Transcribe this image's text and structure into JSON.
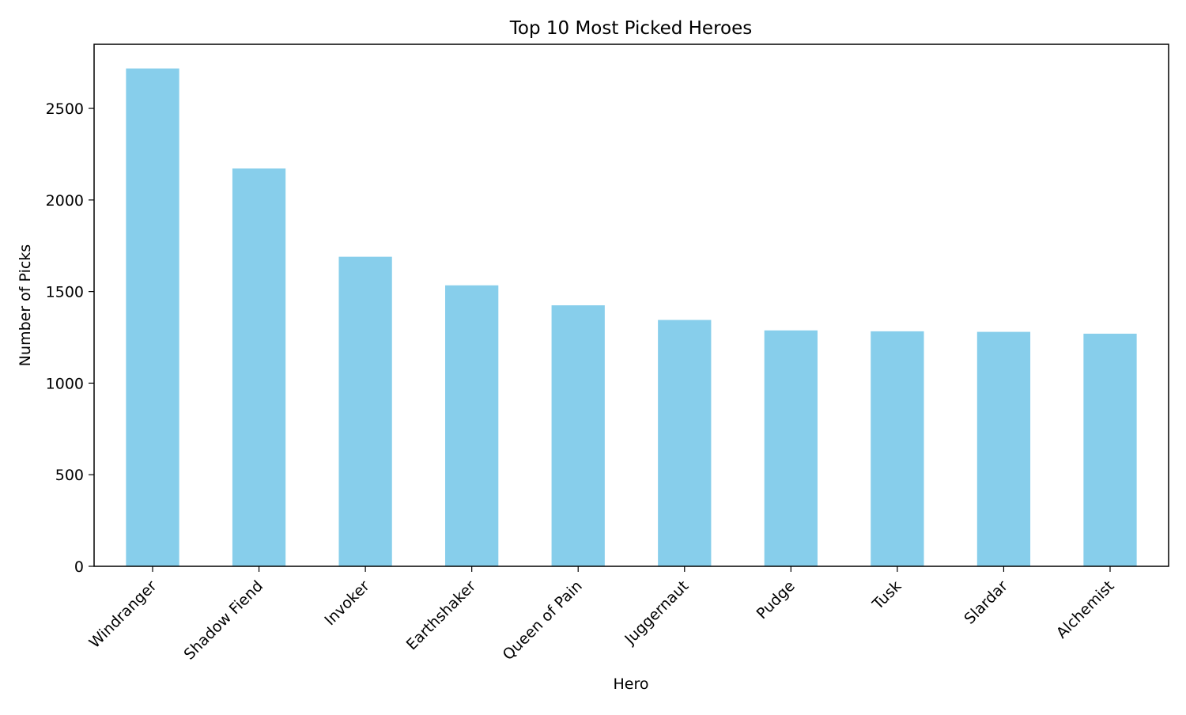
{
  "chart_data": {
    "type": "bar",
    "title": "Top 10 Most Picked Heroes",
    "xlabel": "Hero",
    "ylabel": "Number of Picks",
    "categories": [
      "Windranger",
      "Shadow Fiend",
      "Invoker",
      "Earthshaker",
      "Queen of Pain",
      "Juggernaut",
      "Pudge",
      "Tusk",
      "Slardar",
      "Alchemist"
    ],
    "values": [
      2718,
      2172,
      1690,
      1534,
      1425,
      1345,
      1288,
      1283,
      1280,
      1270
    ],
    "ylim": [
      0,
      2850
    ],
    "yticks": [
      0,
      500,
      1000,
      1500,
      2000,
      2500
    ],
    "grid": false,
    "legend": "none",
    "bar_color": "#87ceeb"
  }
}
